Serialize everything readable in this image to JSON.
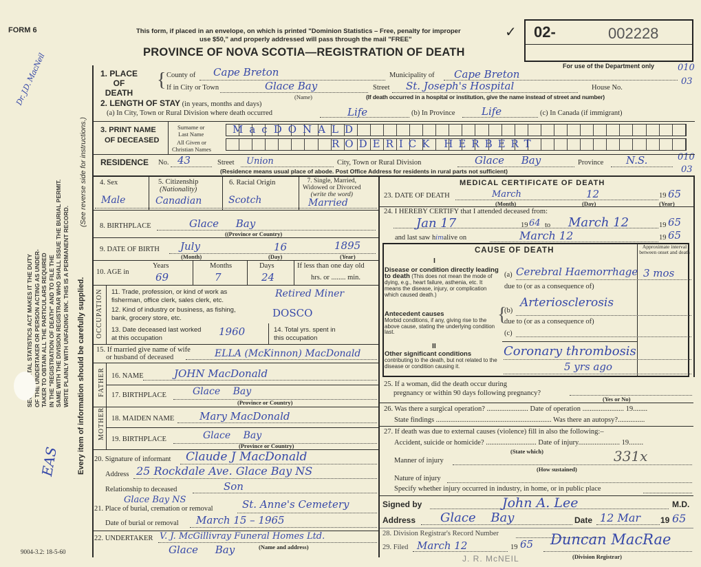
{
  "header": {
    "form_label": "FORM 6",
    "annotation_topleft": "Dr. J.D. MacNeil",
    "notice_line1": "This form, if placed in an envelope, on which is printed \"Dominion Statistics – Free, penalty for improper",
    "notice_line2": "use $50,\" and properly addressed will pass through the mail \"FREE\"",
    "title": "PROVINCE OF NOVA SCOTIA—REGISTRATION OF DEATH",
    "check_mark": "✓",
    "reg_prefix": "02-",
    "reg_number": "002228",
    "department_note": "For use of the Department only",
    "codes1": [
      "010",
      "03"
    ],
    "codes2": [
      "010",
      "03"
    ]
  },
  "sidebar": {
    "act_text": [
      "SEC. 14 – VITAL STATISTICS ACT MAKES IT THE DUTY",
      "OF THE UNDERTAKER OR PERSON ACTING AS UNDER-",
      "TAKER TO OBTAIN ALL THE PARTICULARS REQUIRED",
      "IN THE \"REGISTRATION OF DEATH\" AND TO FILE THE",
      "SAME WITH THE DIVISION REGISTRAR WHO SHALL ISSUE THE BURIAL PERMIT.",
      "WRITE PLAINLY WITH UNFADING INK. THIS IS A PERMANENT RECORD."
    ],
    "reverse_note": "(See reverse side for instructions.)",
    "every_item": "Every item of information should be carefully supplied.",
    "initials": "EAS",
    "form_code": "9004-3.2: 18-5-60"
  },
  "place": {
    "label_1": "1. PLACE",
    "label_2": "OF",
    "label_3": "DEATH",
    "county_label": "County of",
    "county": "Cape Breton",
    "municipality_label": "Municipality of",
    "municipality": "Cape Breton",
    "city_label": "If in City or Town",
    "city": "Glace Bay",
    "name_note": "(Name)",
    "street_label": "Street",
    "street": "St. Joseph's Hospital",
    "house_label": "House No.",
    "hospital_note": "(If death occurred in a hospital or institution, give the name instead of street and number)"
  },
  "stay": {
    "label": "2. LENGTH OF STAY",
    "label_note": "(in years, months and days)",
    "a_label": "(a) In City, Town or Rural Division where death occurred",
    "a": "Life",
    "b_label": "(b) In Province",
    "b": "Life",
    "c_label": "(c) In Canada (if immigrant)"
  },
  "name": {
    "label_1": "3. PRINT NAME",
    "label_2": "OF DECEASED",
    "surname_label_1": "Surname or",
    "surname_label_2": "Last Name",
    "surname": "MacDONALD",
    "given_label_1": "All Given or",
    "given_label_2": "Christian Names",
    "given": "RODERICK HERBERT"
  },
  "residence": {
    "label": "RESIDENCE",
    "no_label": "No.",
    "no": "43",
    "street_label": "Street",
    "street": "Union",
    "city_label": "City, Town or Rural Division",
    "city": "Glace Bay",
    "province_label": "Province",
    "province": "N.S.",
    "note": "(Residence means usual place of abode. Post Office Address for residents in rural parts not sufficient)"
  },
  "personal": {
    "sex_label": "4. Sex",
    "sex": "Male",
    "citizenship_label": "5. Citizenship",
    "citizenship_sub": "(Nationality)",
    "citizenship": "Canadian",
    "racial_label": "6. Racial Origin",
    "racial": "Scotch",
    "marital_label_1": "7. Single, Married,",
    "marital_label_2": "Widowed or Divorced",
    "marital_label_3": "(write the word)",
    "marital": "Married",
    "birthplace_label": "8. BIRTHPLACE",
    "birthplace": "Glace Bay",
    "birthplace_note": "((Province or Country)",
    "dob_label": "9. DATE OF BIRTH",
    "dob_month": "July",
    "dob_day": "16",
    "dob_year": "1895",
    "month_note": "(Month)",
    "day_note": "(Day)",
    "year_note": "(Year)",
    "age_label": "10. AGE in",
    "years_label": "Years",
    "years": "69",
    "months_label": "Months",
    "months": "7",
    "days_label": "Days",
    "days": "24",
    "lessday_label": "If less than one day old",
    "hrs_label": "hrs. or ........ min."
  },
  "occupation": {
    "side_label": "OCCUPATION",
    "q11_1": "11. Trade, profession, or kind of work as",
    "q11_2": "fisherman, office clerk, sales clerk, etc.",
    "a11": "Retired Miner",
    "q12_1": "12. Kind of industry or business, as fishing,",
    "q12_2": "bank, grocery store, etc.",
    "a12": "DOSCO",
    "q13_1": "13. Date deceased last worked",
    "q13_2": "at this occupation",
    "a13": "1960",
    "q14_1": "14. Total yrs. spent in",
    "q14_2": "this occupation"
  },
  "family": {
    "q15_1": "15. If married give name of wife",
    "q15_2": "or husband of deceased",
    "spouse": "ELLA (McKinnon) MacDonald",
    "father_label": "FATHER",
    "father_name_label": "16. NAME",
    "father_name": "JOHN MacDonald",
    "father_bp_label": "17. BIRTHPLACE",
    "father_bp": "Glace Bay",
    "prov_note": "(Province or Country)",
    "mother_label": "MOTHER",
    "mother_name_label": "18. MAIDEN NAME",
    "mother_name": "Mary MacDonald",
    "mother_bp_label": "19. BIRTHPLACE",
    "mother_bp": "Glace Bay"
  },
  "informant": {
    "sig_label": "20. Signature of informant",
    "signature": "Claude J MacDonald",
    "address_label": "Address",
    "address": "25 Rockdale Ave. Glace Bay NS",
    "relation_label": "Relationship to deceased",
    "relation": "Son"
  },
  "burial": {
    "place_label": "21. Place of burial, cremation or removal",
    "place_above": "Glace Bay NS",
    "place": "St. Anne's Cemetery",
    "date_label": "Date of burial or removal",
    "date": "March 15 – 1965"
  },
  "undertaker": {
    "label": "22. UNDERTAKER",
    "name": "V. J. McGillivray Funeral Homes Ltd.",
    "name_note": "(Name and address)",
    "city": "Glace Bay"
  },
  "medical": {
    "title": "MEDICAL CERTIFICATE OF DEATH",
    "dod_label": "23. DATE OF DEATH",
    "dod_month": "March",
    "dod_day": "12",
    "dod_year": "65",
    "year_prefix": "19",
    "q24": "24. I HEREBY CERTIFY that I attended deceased from:",
    "from": "Jan 17",
    "from_year": "64",
    "to_label": "to",
    "to": "March 12",
    "to_year": "65",
    "lastsaw_label": "and last saw h",
    "lastsaw_hw": "im",
    "alive_label": "alive on",
    "lastsaw": "March 12",
    "lastsaw_year": "65"
  },
  "cause": {
    "title": "CAUSE OF DEATH",
    "roman1": "I",
    "interval_label": "Approximate interval between onset and death",
    "direct_title": "Disease or condition directly leading to death",
    "direct_note": "(This does not mean the mode of dying, e.g., heart failure, asthenia, etc. It means the disease, injury, or complication which caused death.)",
    "a_label": "(a)",
    "a": "Cerebral Haemorrhage",
    "a_interval": "3 mos",
    "due_to": "due to (or as a consequence of)",
    "antecedent_title": "Antecedent causes",
    "antecedent_note": "Morbid conditions, if any, giving rise to the above cause, stating the underlying condition last.",
    "b_label": "(b)",
    "b": "Arteriosclerosis",
    "c_label": "(c)",
    "roman2": "II",
    "other_title": "Other significant conditions",
    "other_note": "contributing to the death, but not related to the disease or condition causing it.",
    "other": "Coronary thrombosis",
    "other_2": "5 yrs ago"
  },
  "questions": {
    "q25_1": "25. If a woman, did the death occur during",
    "q25_2": "pregnancy or within 90 days following pregnancy?",
    "yesno": "(Yes or No)",
    "q26": "26. Was there a surgical operation? ....................... Date of operation ....................... 19........",
    "findings": "State findings ................................................................ Was there an autopsy?...............",
    "q27": "27. If death was due to external causes (violence) fill in also the following:–",
    "accident": "Accident, suicide or homicide? ............................ Date of injury....................... 19........",
    "state_which": "(State which)",
    "manner": "Manner of injury",
    "manner_hw": "331x",
    "how": "(How sustained)",
    "nature": "Nature of injury",
    "specify": "Specify whether injury occurred in industry, in home, or in public place"
  },
  "signoff": {
    "signed_label": "Signed by",
    "signature": "John A. Lee",
    "md": "M.D.",
    "address_label": "Address",
    "address": "Glace Bay",
    "date_label": "Date",
    "date": "12 Mar",
    "year": "65",
    "q28": "28. Division Registrar's Record Number",
    "q29": "29. Filed",
    "filed": "March 12",
    "filed_year": "65",
    "registrar": "Duncan MacRae",
    "registrar_note": "(Division Registrar)",
    "stamp": "J. R. McNEIL"
  }
}
